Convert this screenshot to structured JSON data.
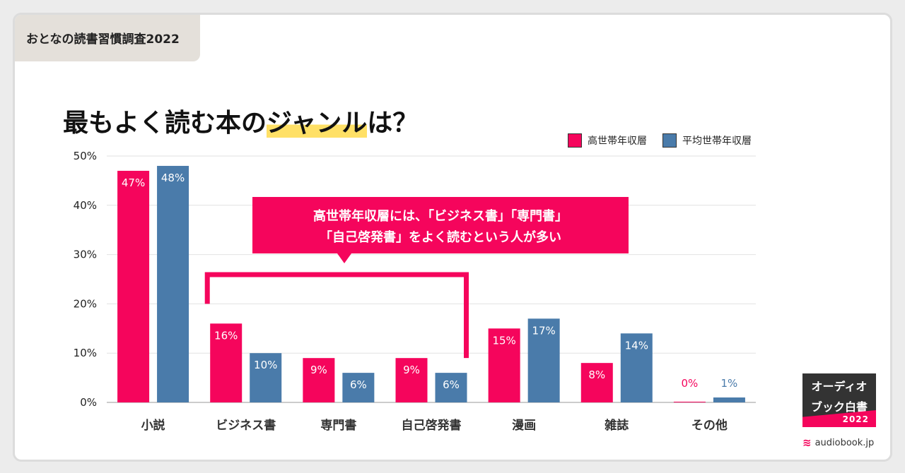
{
  "header": {
    "survey_label": "おとなの読書習慣調査2022"
  },
  "title": {
    "pre": "最もよく読む本の",
    "highlight": "ジャンル",
    "post": "は？"
  },
  "colors": {
    "high_income": "#f5055c",
    "average_income": "#4a7baa",
    "callout": "#f5055c",
    "highlight": "#ffe066"
  },
  "callout": {
    "line1": "高世帯年収層には、「ビジネス書」「専門書」",
    "line2": "「自己啓発書」をよく読むという人が多い"
  },
  "badge": {
    "line1": "オーディオ",
    "line2": "ブック白書",
    "year": "2022"
  },
  "brand": {
    "icon": "book-stack-icon",
    "label": "audiobook.jp"
  },
  "chart_data": {
    "type": "bar",
    "title": "最もよく読む本のジャンルは？",
    "categories": [
      "小説",
      "ビジネス書",
      "専門書",
      "自己啓発書",
      "漫画",
      "雑誌",
      "その他"
    ],
    "series": [
      {
        "name": "高世帯年収層",
        "values": [
          47,
          16,
          9,
          9,
          15,
          8,
          0
        ],
        "labels": [
          "47%",
          "16%",
          "9%",
          "9%",
          "15%",
          "8%",
          "0%"
        ]
      },
      {
        "name": "平均世帯年収層",
        "values": [
          48,
          10,
          6,
          6,
          17,
          14,
          1
        ],
        "labels": [
          "48%",
          "10%",
          "6%",
          "6%",
          "17%",
          "14%",
          "1%"
        ]
      }
    ],
    "yticks": [
      "0%",
      "10%",
      "20%",
      "30%",
      "40%",
      "50%"
    ],
    "ylim": [
      0,
      50
    ],
    "grid": true,
    "legend_position": "top-right"
  }
}
